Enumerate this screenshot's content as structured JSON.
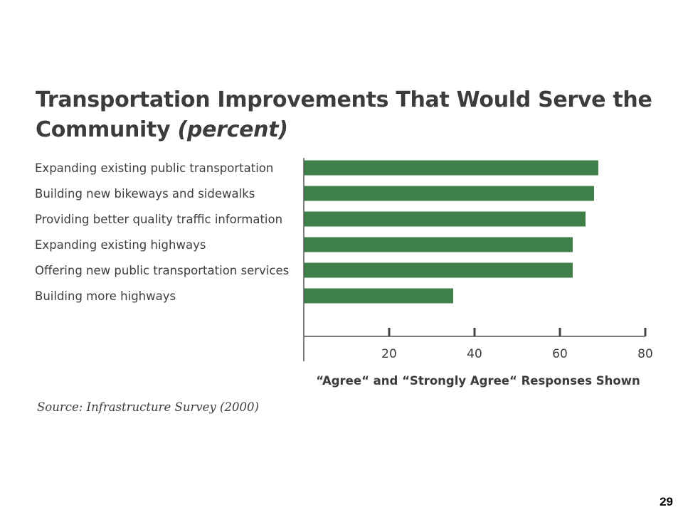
{
  "title_main": "Transportation Improvements That Would Serve the Community",
  "title_suffix": "(percent)",
  "chart_data": {
    "type": "bar",
    "orientation": "horizontal",
    "categories": [
      "Expanding existing public transportation",
      "Building new bikeways and sidewalks",
      "Providing better quality traffic information",
      "Expanding existing highways",
      "Offering new public transportation services",
      "Building more highways"
    ],
    "values": [
      69,
      68,
      66,
      63,
      63,
      35
    ],
    "xlabel": "“Agree“ and “Strongly Agree“ Responses Shown",
    "xlim": [
      0,
      80
    ],
    "xticks": [
      20,
      40,
      60,
      80
    ],
    "bar_color": "#3e8048",
    "grid": false,
    "legend": "none"
  },
  "source": "Source: Infrastructure Survey (2000)",
  "page_number": "29"
}
